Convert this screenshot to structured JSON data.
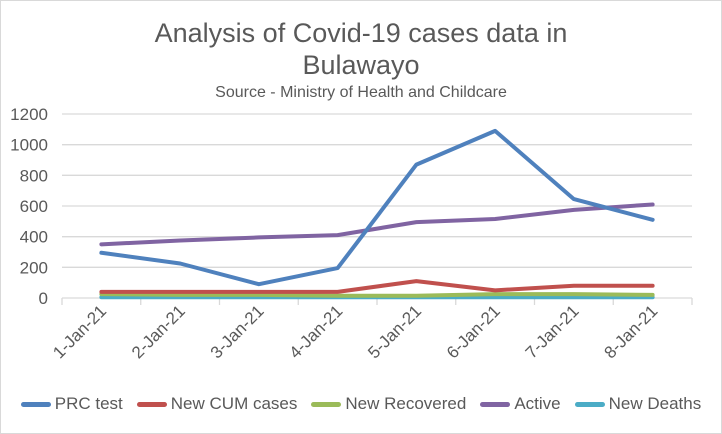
{
  "chart_data": {
    "type": "line",
    "title_line1": "Analysis of Covid-19 cases data in",
    "title_line2": "Bulawayo",
    "subtitle": "Source - Ministry of Health and Childcare",
    "xlabel": "",
    "ylabel": "",
    "ylim": [
      0,
      1200
    ],
    "yticks": [
      0,
      200,
      400,
      600,
      800,
      1000,
      1200
    ],
    "grid": true,
    "legend_position": "bottom",
    "categories": [
      "1-Jan-21",
      "2-Jan-21",
      "3-Jan-21",
      "4-Jan-21",
      "5-Jan-21",
      "6-Jan-21",
      "7-Jan-21",
      "8-Jan-21"
    ],
    "series": [
      {
        "name": "PRC test",
        "color": "#4f81bd",
        "values": [
          295,
          225,
          90,
          195,
          870,
          1090,
          645,
          510
        ]
      },
      {
        "name": "New CUM cases",
        "color": "#c0504d",
        "values": [
          40,
          40,
          40,
          40,
          110,
          50,
          80,
          80
        ]
      },
      {
        "name": "New Recovered",
        "color": "#9bbb59",
        "values": [
          25,
          20,
          20,
          15,
          15,
          25,
          25,
          20
        ]
      },
      {
        "name": "Active",
        "color": "#8064a2",
        "values": [
          350,
          375,
          395,
          410,
          495,
          515,
          575,
          610
        ]
      },
      {
        "name": "New Deaths",
        "color": "#4bacc6",
        "values": [
          5,
          5,
          5,
          5,
          5,
          5,
          5,
          5
        ]
      }
    ]
  }
}
